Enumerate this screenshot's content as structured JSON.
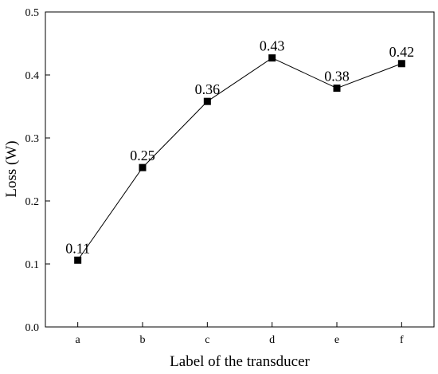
{
  "chart_data": {
    "type": "line",
    "x_label": "Label of the transducer",
    "y_label": "Loss (W)",
    "categories": [
      "a",
      "b",
      "c",
      "d",
      "e",
      "f"
    ],
    "values": [
      0.106,
      0.253,
      0.358,
      0.427,
      0.379,
      0.418
    ],
    "value_labels": [
      "0.11",
      "0.25",
      "0.36",
      "0.43",
      "0.38",
      "0.42"
    ],
    "color": "#000000",
    "ylim": [
      0,
      0.5
    ],
    "yticks": [
      {
        "value": 0,
        "label": "0.0"
      },
      0.1,
      0.2,
      0.3,
      0.4,
      0.5
    ]
  }
}
